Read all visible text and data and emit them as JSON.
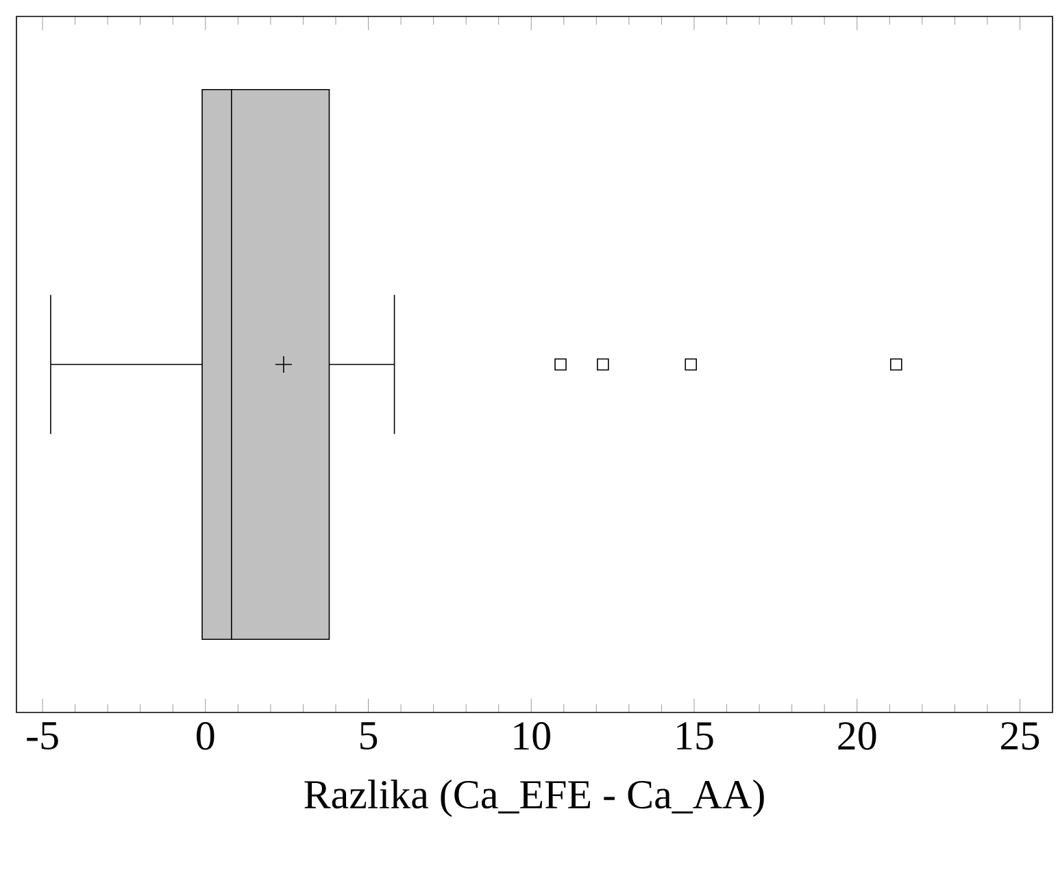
{
  "chart_data": {
    "type": "box",
    "orientation": "horizontal",
    "xlabel": "Razlika (Ca_EFE - Ca_AA)",
    "categories": [
      null
    ],
    "boxes": [
      {
        "low": -4.75,
        "q1": -0.1,
        "median": 0.8,
        "q3": 3.8,
        "high": 5.8,
        "mean": 2.4,
        "outliers": [
          10.9,
          12.2,
          14.9,
          21.2
        ]
      }
    ],
    "color": "#c0c0c0",
    "xlim": [
      -5.8,
      26
    ],
    "xticks": [
      -5,
      0,
      5,
      10,
      15,
      20,
      25
    ],
    "tick_labels": "x"
  }
}
